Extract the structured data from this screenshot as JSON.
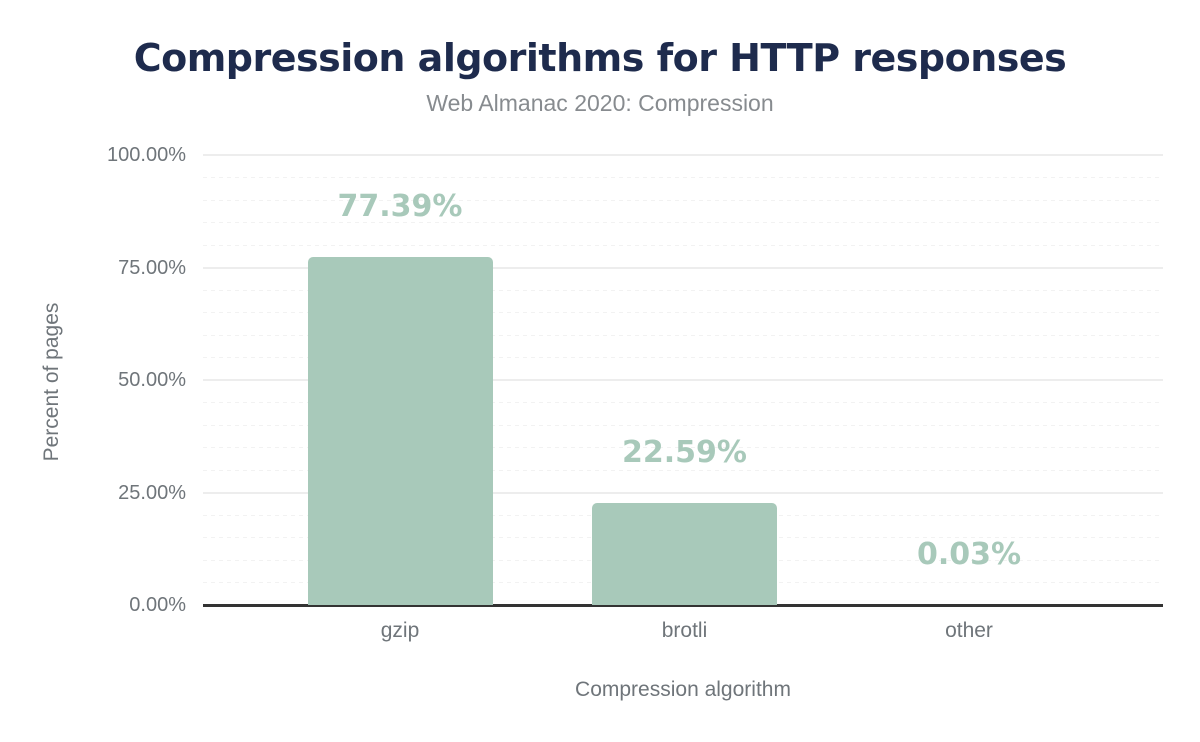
{
  "title": "Compression algorithms for HTTP responses",
  "subtitle": "Web Almanac 2020: Compression",
  "chart_data": {
    "type": "bar",
    "title": "Compression algorithms for HTTP responses",
    "subtitle": "Web Almanac 2020: Compression",
    "categories": [
      "gzip",
      "brotli",
      "other"
    ],
    "values": [
      77.39,
      22.59,
      0.03
    ],
    "value_labels": [
      "77.39%",
      "22.59%",
      "0.03%"
    ],
    "xlabel": "Compression algorithm",
    "ylabel": "Percent of pages",
    "ylim": [
      0,
      100
    ],
    "yticks": [
      {
        "value": 0,
        "label": "0.00%"
      },
      {
        "value": 25,
        "label": "25.00%"
      },
      {
        "value": 50,
        "label": "50.00%"
      },
      {
        "value": 75,
        "label": "75.00%"
      },
      {
        "value": 100,
        "label": "100.00%"
      }
    ],
    "minor_tick_step": 5,
    "grid": "major-solid-minor-dashed",
    "legend": "none",
    "colors": {
      "bar": "#a8c9ba",
      "value_label": "#a8c9ba",
      "title": "#1e2b4d",
      "subtitle_text": "#878b8f",
      "axis_text": "#6f757a",
      "axis_line": "#333333",
      "gridline_major": "#ededed",
      "gridline_minor": "#f2f2f2"
    }
  }
}
